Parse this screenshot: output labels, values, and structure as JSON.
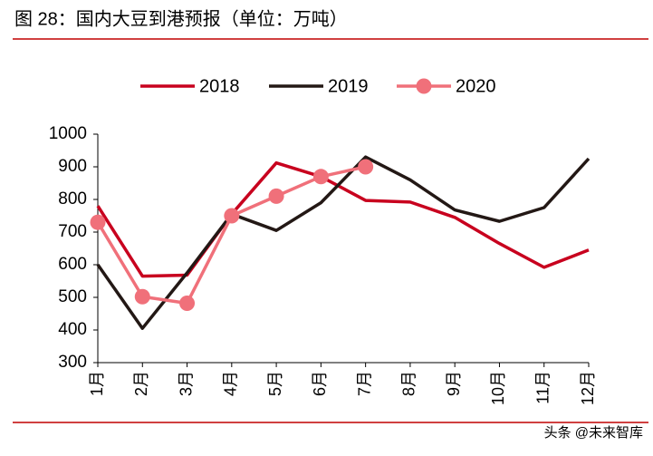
{
  "chart_data": {
    "type": "line",
    "title": "图 28：国内大豆到港预报（单位：万吨）",
    "categories": [
      "1月",
      "2月",
      "3月",
      "4月",
      "5月",
      "6月",
      "7月",
      "8月",
      "9月",
      "10月",
      "11月",
      "12月"
    ],
    "series": [
      {
        "name": "2018",
        "color": "#c8001e",
        "marker": false,
        "values": [
          780,
          565,
          568,
          755,
          912,
          870,
          797,
          792,
          745,
          665,
          592,
          645
        ]
      },
      {
        "name": "2019",
        "color": "#231815",
        "marker": false,
        "values": [
          600,
          405,
          575,
          755,
          705,
          790,
          930,
          860,
          768,
          733,
          775,
          925
        ]
      },
      {
        "name": "2020",
        "color": "#f0707a",
        "marker": true,
        "values": [
          730,
          502,
          482,
          750,
          810,
          870,
          900,
          null,
          null,
          null,
          null,
          null
        ]
      }
    ],
    "ylim": [
      300,
      1000
    ],
    "yticks": [
      300,
      400,
      500,
      600,
      700,
      800,
      900,
      1000
    ],
    "legend": "top"
  },
  "watermark": "头条 @未来智库"
}
